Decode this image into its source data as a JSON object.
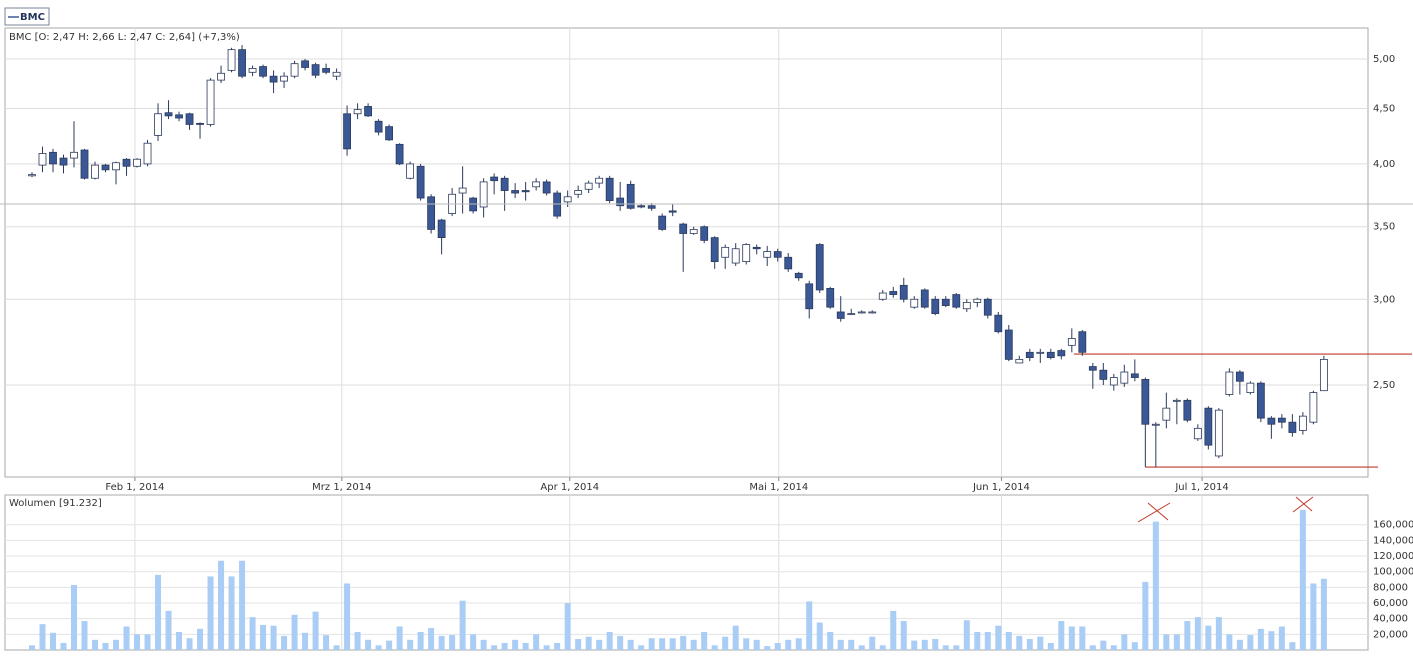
{
  "legend_label": "BMC",
  "chart_data": [
    {
      "type": "candlestick",
      "title": "BMC [O: 2,47  H: 2,66  L: 2,47  C: 2,64] (+7,3%)",
      "open": [
        3.9,
        3.99,
        4.1,
        4.05,
        4.05,
        4.12,
        3.88,
        3.99,
        3.95,
        4.04,
        3.98,
        4.0,
        4.25,
        4.46,
        4.44,
        4.45,
        4.36,
        4.35,
        4.78,
        4.88,
        5.1,
        4.86,
        4.92,
        4.82,
        4.77,
        4.82,
        4.98,
        4.94,
        4.9,
        4.82,
        4.45,
        4.45,
        4.52,
        4.38,
        4.33,
        4.17,
        3.88,
        3.98,
        3.73,
        3.55,
        3.6,
        3.76,
        3.72,
        3.65,
        3.89,
        3.88,
        3.78,
        3.78,
        3.81,
        3.85,
        3.76,
        3.69,
        3.75,
        3.79,
        3.84,
        3.88,
        3.72,
        3.83,
        3.66,
        3.66,
        3.58,
        3.62,
        3.52,
        3.45,
        3.5,
        3.42,
        3.28,
        3.24,
        3.25,
        3.35,
        3.28,
        3.32,
        3.28,
        3.17,
        3.1,
        3.37,
        3.07,
        2.92,
        2.91,
        2.92,
        2.92,
        3.0,
        3.05,
        3.09,
        2.95,
        3.06,
        3.0,
        3.0,
        3.03,
        2.94,
        2.98,
        3.0,
        2.9,
        2.81,
        2.62,
        2.68,
        2.68,
        2.68,
        2.69,
        2.72,
        2.8,
        2.6,
        2.58,
        2.5,
        2.51,
        2.56,
        2.53,
        2.3,
        2.32,
        2.42,
        2.42,
        2.23,
        2.38,
        2.15,
        2.45,
        2.57,
        2.46,
        2.51,
        2.33,
        2.33,
        2.31,
        2.27,
        2.31,
        2.47
      ],
      "high": [
        3.93,
        4.15,
        4.13,
        4.08,
        4.38,
        4.13,
        4.02,
        4.0,
        4.02,
        4.05,
        4.05,
        4.21,
        4.55,
        4.58,
        4.47,
        4.46,
        4.37,
        4.8,
        4.93,
        5.12,
        5.15,
        4.93,
        4.94,
        4.88,
        4.86,
        4.98,
        5.0,
        4.96,
        4.95,
        4.9,
        4.53,
        4.55,
        4.55,
        4.4,
        4.35,
        4.18,
        4.02,
        4.0,
        3.75,
        3.56,
        3.8,
        3.98,
        3.73,
        3.88,
        3.92,
        3.9,
        3.84,
        3.85,
        3.88,
        3.87,
        3.78,
        3.78,
        3.82,
        3.86,
        3.9,
        3.9,
        3.85,
        3.86,
        3.67,
        3.68,
        3.6,
        3.67,
        3.53,
        3.5,
        3.51,
        3.43,
        3.37,
        3.38,
        3.38,
        3.37,
        3.36,
        3.34,
        3.31,
        3.18,
        3.12,
        3.38,
        3.08,
        3.02,
        2.94,
        2.93,
        2.93,
        3.06,
        3.08,
        3.14,
        3.02,
        3.07,
        3.02,
        3.02,
        3.04,
        3.0,
        3.01,
        3.01,
        2.92,
        2.84,
        2.66,
        2.7,
        2.7,
        2.7,
        2.7,
        2.82,
        2.81,
        2.62,
        2.62,
        2.56,
        2.61,
        2.64,
        2.54,
        2.31,
        2.46,
        2.43,
        2.43,
        2.3,
        2.39,
        2.38,
        2.59,
        2.58,
        2.52,
        2.52,
        2.34,
        2.35,
        2.35,
        2.36,
        2.47,
        2.66
      ],
      "low": [
        3.89,
        3.93,
        3.93,
        3.92,
        3.97,
        3.87,
        3.87,
        3.93,
        3.83,
        3.9,
        3.97,
        3.98,
        4.2,
        4.4,
        4.38,
        4.3,
        4.22,
        4.33,
        4.75,
        4.86,
        4.8,
        4.82,
        4.8,
        4.65,
        4.7,
        4.8,
        4.88,
        4.8,
        4.84,
        4.78,
        4.07,
        4.4,
        4.42,
        4.25,
        4.2,
        3.99,
        3.87,
        3.7,
        3.45,
        3.3,
        3.58,
        3.6,
        3.6,
        3.57,
        3.75,
        3.62,
        3.72,
        3.7,
        3.78,
        3.74,
        3.56,
        3.65,
        3.72,
        3.76,
        3.8,
        3.68,
        3.62,
        3.63,
        3.64,
        3.62,
        3.47,
        3.58,
        3.18,
        3.44,
        3.38,
        3.2,
        3.2,
        3.22,
        3.23,
        3.3,
        3.22,
        3.25,
        3.18,
        3.12,
        2.88,
        3.04,
        2.94,
        2.86,
        2.9,
        2.91,
        2.91,
        2.99,
        3.01,
        2.98,
        2.94,
        2.94,
        2.9,
        2.95,
        2.94,
        2.92,
        2.95,
        2.88,
        2.79,
        2.63,
        2.62,
        2.63,
        2.62,
        2.64,
        2.64,
        2.68,
        2.66,
        2.48,
        2.5,
        2.47,
        2.49,
        2.52,
        2.1,
        2.1,
        2.28,
        2.3,
        2.31,
        2.22,
        2.18,
        2.14,
        2.44,
        2.45,
        2.45,
        2.31,
        2.23,
        2.28,
        2.24,
        2.25,
        2.3,
        2.47
      ],
      "close": [
        3.91,
        4.09,
        4.0,
        3.99,
        4.1,
        3.88,
        3.99,
        3.95,
        4.01,
        3.98,
        4.04,
        4.18,
        4.45,
        4.43,
        4.41,
        4.35,
        4.35,
        4.78,
        4.85,
        5.1,
        4.82,
        4.9,
        4.82,
        4.76,
        4.82,
        4.95,
        4.91,
        4.83,
        4.86,
        4.86,
        4.13,
        4.49,
        4.43,
        4.28,
        4.21,
        4.0,
        4.0,
        3.72,
        3.48,
        3.42,
        3.75,
        3.8,
        3.62,
        3.85,
        3.86,
        3.78,
        3.76,
        3.77,
        3.85,
        3.76,
        3.58,
        3.73,
        3.78,
        3.84,
        3.88,
        3.7,
        3.66,
        3.64,
        3.65,
        3.64,
        3.48,
        3.61,
        3.45,
        3.48,
        3.4,
        3.25,
        3.35,
        3.34,
        3.37,
        3.34,
        3.32,
        3.28,
        3.2,
        3.14,
        2.94,
        3.06,
        2.95,
        2.88,
        2.91,
        2.92,
        2.92,
        3.04,
        3.03,
        3.0,
        3.0,
        2.95,
        2.91,
        2.96,
        2.95,
        2.98,
        3.0,
        2.9,
        2.8,
        2.64,
        2.64,
        2.65,
        2.68,
        2.65,
        2.66,
        2.76,
        2.68,
        2.58,
        2.53,
        2.54,
        2.57,
        2.54,
        2.3,
        2.3,
        2.38,
        2.42,
        2.32,
        2.28,
        2.2,
        2.37,
        2.57,
        2.52,
        2.51,
        2.33,
        2.3,
        2.31,
        2.26,
        2.34,
        2.46,
        2.64
      ],
      "up_color": "#ffffff",
      "down_color": "#3a5896",
      "wick_color": "#2b3a5c",
      "log_scale": true,
      "ylim": [
        2.056,
        5.34
      ],
      "yticks": [
        {
          "value": 2.5,
          "label": "2,50"
        },
        {
          "value": 3,
          "label": "3,00"
        },
        {
          "value": 3.5,
          "label": "3,50"
        },
        {
          "value": 4,
          "label": "4,00"
        },
        {
          "value": 4.5,
          "label": "4,50"
        },
        {
          "value": 5,
          "label": "5,00"
        }
      ],
      "xlim": [
        -2.57,
        127.2
      ],
      "xticks": [
        {
          "value": 9.8,
          "label": "Feb 1, 2014"
        },
        {
          "value": 29.5,
          "label": "Mrz 1, 2014"
        },
        {
          "value": 51.2,
          "label": "Apr 1, 2014"
        },
        {
          "value": 71.1,
          "label": "Mai 1, 2014"
        },
        {
          "value": 92.3,
          "label": "Jun 1, 2014"
        },
        {
          "value": 111.4,
          "label": "Jul 1, 2014"
        }
      ],
      "grid": true,
      "hlines": [
        {
          "value": 2.67,
          "color": "#c0392b"
        },
        {
          "value": 2.1,
          "color": "#c0392b"
        }
      ]
    },
    {
      "type": "bar",
      "title": "Wolumen [91.232]",
      "values": [
        6000,
        33000,
        22000,
        9000,
        83000,
        37000,
        13000,
        9000,
        13000,
        30000,
        20000,
        20000,
        96000,
        50000,
        23000,
        15000,
        27000,
        94000,
        114000,
        94000,
        114000,
        42000,
        32000,
        31000,
        18000,
        45000,
        22000,
        49000,
        19000,
        6000,
        85000,
        23000,
        13000,
        6000,
        12000,
        30000,
        13000,
        23000,
        28000,
        18000,
        19000,
        63000,
        20000,
        13000,
        6000,
        9000,
        13000,
        9000,
        20000,
        6000,
        9000,
        60000,
        14000,
        17000,
        13000,
        23000,
        18000,
        13000,
        6000,
        15000,
        15000,
        15000,
        18000,
        13000,
        23000,
        6000,
        17000,
        31000,
        15000,
        13000,
        5000,
        9000,
        13000,
        15000,
        62000,
        35000,
        23000,
        13000,
        13000,
        6000,
        17000,
        6000,
        50000,
        37000,
        12000,
        13000,
        14000,
        6000,
        6000,
        38000,
        23000,
        23000,
        31000,
        23000,
        18000,
        14000,
        17000,
        9000,
        37000,
        30000,
        30000,
        6000,
        12000,
        6000,
        20000,
        10000,
        87000,
        164000,
        20000,
        20000,
        37000,
        42000,
        31000,
        42000,
        20000,
        13000,
        19000,
        27000,
        24000,
        30000,
        10000,
        179000,
        85000,
        91000
      ],
      "color": "#a9cdf5",
      "ylim": [
        0,
        198000
      ],
      "yticks": [
        {
          "value": 20000,
          "label": "20,000"
        },
        {
          "value": 40000,
          "label": "40,000"
        },
        {
          "value": 60000,
          "label": "60,000"
        },
        {
          "value": 80000,
          "label": "80,000"
        },
        {
          "value": 100000,
          "label": "100,000"
        },
        {
          "value": 120000,
          "label": "120,000"
        },
        {
          "value": 140000,
          "label": "140,000"
        },
        {
          "value": 160000,
          "label": "160,000"
        }
      ],
      "grid": true
    }
  ]
}
